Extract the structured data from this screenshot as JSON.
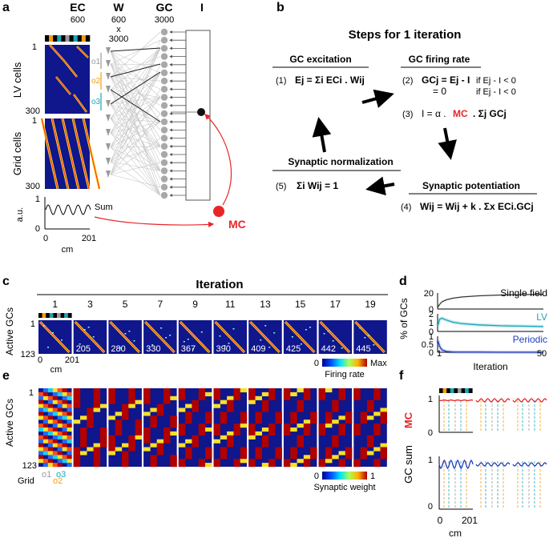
{
  "panels": {
    "a": "a",
    "b": "b",
    "c": "c",
    "d": "d",
    "e": "e",
    "f": "f"
  },
  "colors": {
    "red": "#e8262a",
    "blue": "#1f3fbf",
    "teal": "#1aa7b8",
    "orange": "#f39c12",
    "grey": "#9a9a9a",
    "heat_bg": "#10168c"
  },
  "panel_a": {
    "headers": {
      "ec": "EC",
      "ec_n": "600",
      "w": "W",
      "w_n1": "600",
      "w_x": "x",
      "w_n2": "3000",
      "gc": "GC",
      "gc_n": "3000",
      "i": "I"
    },
    "row_lv": "LV cells",
    "row_grid": "Grid cells",
    "tick_1a": "1",
    "tick_300a": "300",
    "tick_1b": "1",
    "tick_300b": "300",
    "o1": "o1",
    "o2": "o2",
    "o3": "o3",
    "sum_ylabel": "a.u.",
    "sum_1": "1",
    "sum_0": "0",
    "sum_label": "Sum",
    "x0": "0",
    "x201": "201",
    "xunit": "cm",
    "mc": "MC"
  },
  "panel_b": {
    "title": "Steps for 1 iteration",
    "gc_excitation": "GC excitation",
    "gc_firing": "GC firing rate",
    "syn_norm": "Synaptic normalization",
    "syn_pot": "Synaptic potentiation",
    "eq1_num": "(1)",
    "eq2_num": "(2)",
    "eq3_num": "(3)",
    "eq4_num": "(4)",
    "eq5_num": "(5)",
    "eq1": "Ej = Σi ECi . Wij",
    "eq2a": "GCj = Ej - I",
    "eq2a_cond": "if Ej - I < 0",
    "eq2b": "= 0",
    "eq2b_cond": "if Ej - I < 0",
    "eq3_pre": "I = α .",
    "eq3_mc": "MC",
    "eq3_post": ". Σj GCj",
    "eq4": "Wij = Wij + k . Σx ECi.GCj",
    "eq5": "Σi Wij = 1"
  },
  "panel_c": {
    "title": "Iteration",
    "iterations": [
      "1",
      "3",
      "5",
      "7",
      "9",
      "11",
      "13",
      "15",
      "17",
      "19"
    ],
    "counts": [
      "",
      "205",
      "280",
      "330",
      "367",
      "390",
      "409",
      "425",
      "442",
      "445"
    ],
    "ylabel": "Active GCs",
    "y1": "1",
    "y123": "123",
    "x0": "0",
    "x201": "201",
    "xunit": "cm",
    "cbar_min": "0",
    "cbar_max": "Max",
    "cbar_label": "Firing rate"
  },
  "panel_d": {
    "ylabel": "% of GCs",
    "xlabel": "Iteration",
    "x1": "1",
    "x50": "50",
    "single_label": "Single field",
    "lv_label": "LV",
    "periodic_label": "Periodic",
    "single_ticks": [
      "20",
      "0"
    ],
    "lv_ticks": [
      "2",
      "1",
      "0"
    ],
    "periodic_ticks": [
      "1",
      "0.5",
      "0"
    ]
  },
  "panel_e": {
    "ylabel": "Active GCs",
    "y1": "1",
    "y123": "123",
    "legend_grid": "Grid",
    "legend_o1": "o1",
    "legend_o2": "o2",
    "legend_o3": "o3",
    "cbar_min": "0",
    "cbar_max": "1",
    "cbar_label": "Synaptic weight"
  },
  "panel_f": {
    "ylabel_gc": "GC sum",
    "ylabel_mc": "MC",
    "t1a": "1",
    "t0a": "0",
    "t1b": "1",
    "t0b": "0",
    "x0": "0",
    "x201": "201",
    "xunit": "cm"
  },
  "chart_data": [
    {
      "type": "line",
      "title": "Single field",
      "xlabel": "Iteration",
      "ylabel": "% of GCs",
      "x": [
        1,
        2,
        3,
        5,
        8,
        12,
        20,
        30,
        40,
        50
      ],
      "series": [
        {
          "name": "Single field",
          "values": [
            2,
            6,
            9,
            11.5,
            13.5,
            15,
            16.5,
            17.5,
            18,
            18.3
          ]
        }
      ],
      "ylim": [
        0,
        20
      ]
    },
    {
      "type": "line",
      "title": "LV",
      "x": [
        1,
        2,
        3,
        5,
        8,
        12,
        20,
        30,
        40,
        50
      ],
      "series": [
        {
          "name": "LV",
          "values": [
            0.6,
            1.4,
            1.5,
            1.3,
            1.05,
            0.9,
            0.75,
            0.65,
            0.6,
            0.55
          ]
        }
      ],
      "ylim": [
        0,
        2
      ]
    },
    {
      "type": "line",
      "title": "Periodic",
      "x": [
        1,
        2,
        3,
        5,
        8,
        12,
        20,
        30,
        40,
        50
      ],
      "series": [
        {
          "name": "Periodic",
          "values": [
            0.75,
            0.35,
            0.15,
            0.05,
            0.02,
            0.01,
            0.01,
            0.0,
            0.0,
            0.0
          ]
        }
      ],
      "ylim": [
        0,
        1
      ]
    }
  ]
}
